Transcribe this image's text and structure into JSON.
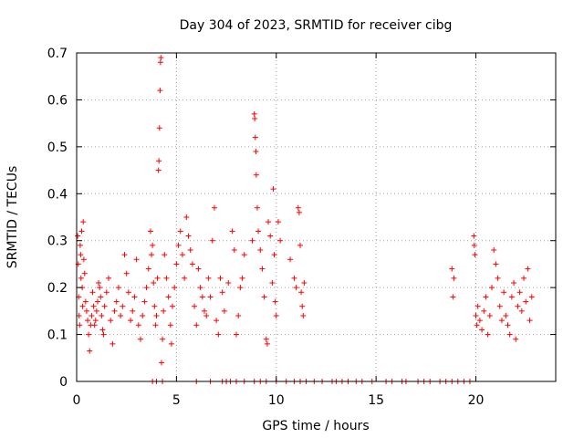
{
  "chart_data": {
    "type": "scatter",
    "title": "Day 304 of 2023, SRMTID for receiver cibg",
    "xlabel": "GPS time / hours",
    "ylabel": "SRMTID / TECUs",
    "xlim": [
      0,
      24
    ],
    "ylim": [
      0,
      0.7
    ],
    "xticks": [
      0,
      5,
      10,
      15,
      20
    ],
    "yticks": [
      0,
      0.1,
      0.2,
      0.3,
      0.4,
      0.5,
      0.6,
      0.7
    ],
    "xtick_labels": [
      "0",
      "5",
      "10",
      "15",
      "20"
    ],
    "ytick_labels": [
      "0",
      "0.1",
      "0.2",
      "0.3",
      "0.4",
      "0.5",
      "0.6",
      "0.7"
    ],
    "grid": true,
    "marker": "+",
    "color": "#ff0000",
    "series": [
      {
        "name": "SRMTID",
        "points": [
          [
            0.05,
            0.31
          ],
          [
            0.08,
            0.25
          ],
          [
            0.1,
            0.18
          ],
          [
            0.12,
            0.14
          ],
          [
            0.15,
            0.12
          ],
          [
            0.18,
            0.29
          ],
          [
            0.2,
            0.27
          ],
          [
            0.22,
            0.22
          ],
          [
            0.25,
            0.32
          ],
          [
            0.28,
            0.2
          ],
          [
            0.3,
            0.16
          ],
          [
            0.33,
            0.34
          ],
          [
            0.36,
            0.26
          ],
          [
            0.4,
            0.23
          ],
          [
            0.45,
            0.17
          ],
          [
            0.5,
            0.15
          ],
          [
            0.55,
            0.13
          ],
          [
            0.6,
            0.1
          ],
          [
            0.65,
            0.065
          ],
          [
            0.7,
            0.12
          ],
          [
            0.75,
            0.14
          ],
          [
            0.8,
            0.19
          ],
          [
            0.85,
            0.16
          ],
          [
            0.9,
            0.12
          ],
          [
            0.95,
            0.13
          ],
          [
            1.0,
            0.15
          ],
          [
            1.05,
            0.17
          ],
          [
            1.1,
            0.21
          ],
          [
            1.15,
            0.2
          ],
          [
            1.2,
            0.18
          ],
          [
            1.25,
            0.14
          ],
          [
            1.3,
            0.11
          ],
          [
            1.35,
            0.1
          ],
          [
            1.4,
            0.16
          ],
          [
            1.5,
            0.19
          ],
          [
            1.6,
            0.22
          ],
          [
            1.7,
            0.13
          ],
          [
            1.8,
            0.08
          ],
          [
            1.9,
            0.15
          ],
          [
            2.0,
            0.17
          ],
          [
            2.1,
            0.2
          ],
          [
            2.2,
            0.14
          ],
          [
            2.3,
            0.16
          ],
          [
            2.4,
            0.27
          ],
          [
            2.5,
            0.23
          ],
          [
            2.6,
            0.19
          ],
          [
            2.7,
            0.13
          ],
          [
            2.8,
            0.15
          ],
          [
            2.9,
            0.18
          ],
          [
            3.0,
            0.26
          ],
          [
            3.1,
            0.12
          ],
          [
            3.2,
            0.09
          ],
          [
            3.3,
            0.14
          ],
          [
            3.4,
            0.17
          ],
          [
            3.5,
            0.2
          ],
          [
            3.6,
            0.24
          ],
          [
            3.7,
            0.32
          ],
          [
            3.75,
            0.27
          ],
          [
            3.8,
            0.29
          ],
          [
            3.85,
            0.21
          ],
          [
            3.9,
            0.16
          ],
          [
            3.95,
            0.12
          ],
          [
            4.0,
            0.14
          ],
          [
            4.05,
            0.22
          ],
          [
            4.1,
            0.45
          ],
          [
            4.12,
            0.47
          ],
          [
            4.15,
            0.54
          ],
          [
            4.18,
            0.62
          ],
          [
            4.2,
            0.68
          ],
          [
            4.22,
            0.69
          ],
          [
            4.25,
            0.04
          ],
          [
            4.3,
            0.09
          ],
          [
            4.35,
            0.15
          ],
          [
            4.4,
            0.27
          ],
          [
            4.5,
            0.22
          ],
          [
            4.6,
            0.18
          ],
          [
            4.7,
            0.12
          ],
          [
            4.75,
            0.08
          ],
          [
            4.8,
            0.16
          ],
          [
            4.9,
            0.2
          ],
          [
            5.0,
            0.25
          ],
          [
            5.1,
            0.29
          ],
          [
            5.2,
            0.32
          ],
          [
            5.3,
            0.27
          ],
          [
            5.4,
            0.22
          ],
          [
            5.5,
            0.35
          ],
          [
            5.6,
            0.31
          ],
          [
            5.7,
            0.28
          ],
          [
            5.8,
            0.25
          ],
          [
            5.9,
            0.16
          ],
          [
            6.0,
            0.12
          ],
          [
            6.1,
            0.24
          ],
          [
            6.2,
            0.2
          ],
          [
            6.3,
            0.18
          ],
          [
            6.4,
            0.15
          ],
          [
            6.5,
            0.14
          ],
          [
            6.6,
            0.22
          ],
          [
            6.7,
            0.18
          ],
          [
            6.8,
            0.3
          ],
          [
            6.9,
            0.37
          ],
          [
            7.0,
            0.13
          ],
          [
            7.1,
            0.1
          ],
          [
            7.2,
            0.22
          ],
          [
            7.3,
            0.19
          ],
          [
            7.4,
            0.15
          ],
          [
            7.6,
            0.21
          ],
          [
            7.8,
            0.32
          ],
          [
            7.9,
            0.28
          ],
          [
            8.0,
            0.1
          ],
          [
            8.1,
            0.14
          ],
          [
            8.2,
            0.2
          ],
          [
            8.3,
            0.22
          ],
          [
            8.4,
            0.27
          ],
          [
            8.8,
            0.3
          ],
          [
            8.9,
            0.57
          ],
          [
            8.92,
            0.56
          ],
          [
            8.95,
            0.52
          ],
          [
            8.98,
            0.49
          ],
          [
            9.0,
            0.44
          ],
          [
            9.05,
            0.37
          ],
          [
            9.1,
            0.32
          ],
          [
            9.2,
            0.28
          ],
          [
            9.3,
            0.24
          ],
          [
            9.4,
            0.18
          ],
          [
            9.5,
            0.09
          ],
          [
            9.55,
            0.08
          ],
          [
            9.6,
            0.34
          ],
          [
            9.7,
            0.31
          ],
          [
            9.8,
            0.21
          ],
          [
            9.85,
            0.41
          ],
          [
            9.9,
            0.27
          ],
          [
            9.95,
            0.17
          ],
          [
            10.0,
            0.14
          ],
          [
            10.1,
            0.34
          ],
          [
            10.2,
            0.3
          ],
          [
            10.7,
            0.26
          ],
          [
            10.9,
            0.22
          ],
          [
            11.0,
            0.2
          ],
          [
            11.1,
            0.37
          ],
          [
            11.15,
            0.36
          ],
          [
            11.2,
            0.29
          ],
          [
            11.25,
            0.19
          ],
          [
            11.3,
            0.16
          ],
          [
            11.35,
            0.14
          ],
          [
            11.4,
            0.21
          ],
          [
            18.8,
            0.24
          ],
          [
            18.85,
            0.18
          ],
          [
            18.9,
            0.22
          ],
          [
            19.9,
            0.31
          ],
          [
            19.92,
            0.29
          ],
          [
            19.95,
            0.27
          ],
          [
            20.0,
            0.14
          ],
          [
            20.05,
            0.12
          ],
          [
            20.1,
            0.16
          ],
          [
            20.2,
            0.13
          ],
          [
            20.3,
            0.11
          ],
          [
            20.4,
            0.15
          ],
          [
            20.5,
            0.18
          ],
          [
            20.6,
            0.1
          ],
          [
            20.7,
            0.14
          ],
          [
            20.8,
            0.2
          ],
          [
            20.9,
            0.28
          ],
          [
            21.0,
            0.25
          ],
          [
            21.1,
            0.22
          ],
          [
            21.2,
            0.16
          ],
          [
            21.3,
            0.13
          ],
          [
            21.4,
            0.19
          ],
          [
            21.5,
            0.14
          ],
          [
            21.6,
            0.12
          ],
          [
            21.7,
            0.1
          ],
          [
            21.8,
            0.18
          ],
          [
            21.9,
            0.21
          ],
          [
            22.0,
            0.09
          ],
          [
            22.1,
            0.16
          ],
          [
            22.2,
            0.19
          ],
          [
            22.3,
            0.15
          ],
          [
            22.4,
            0.22
          ],
          [
            22.5,
            0.17
          ],
          [
            22.6,
            0.24
          ],
          [
            22.7,
            0.13
          ],
          [
            22.8,
            0.18
          ],
          [
            3.8,
            0
          ],
          [
            4.0,
            0
          ],
          [
            4.3,
            0
          ],
          [
            6.0,
            0
          ],
          [
            6.7,
            0
          ],
          [
            7.3,
            0
          ],
          [
            7.5,
            0
          ],
          [
            7.7,
            0
          ],
          [
            8.0,
            0
          ],
          [
            8.4,
            0
          ],
          [
            8.9,
            0
          ],
          [
            9.2,
            0
          ],
          [
            9.5,
            0
          ],
          [
            10.0,
            0
          ],
          [
            10.5,
            0
          ],
          [
            10.9,
            0
          ],
          [
            11.2,
            0
          ],
          [
            11.5,
            0
          ],
          [
            11.9,
            0
          ],
          [
            12.3,
            0
          ],
          [
            12.8,
            0
          ],
          [
            13.0,
            0
          ],
          [
            13.3,
            0
          ],
          [
            13.6,
            0
          ],
          [
            14.0,
            0
          ],
          [
            14.3,
            0
          ],
          [
            14.8,
            0
          ],
          [
            15.5,
            0
          ],
          [
            15.8,
            0
          ],
          [
            16.3,
            0
          ],
          [
            16.5,
            0
          ],
          [
            17.1,
            0
          ],
          [
            17.4,
            0
          ],
          [
            17.7,
            0
          ],
          [
            18.2,
            0
          ],
          [
            18.5,
            0
          ],
          [
            18.8,
            0
          ],
          [
            19.1,
            0
          ],
          [
            19.4,
            0
          ],
          [
            19.7,
            0
          ]
        ]
      }
    ]
  }
}
